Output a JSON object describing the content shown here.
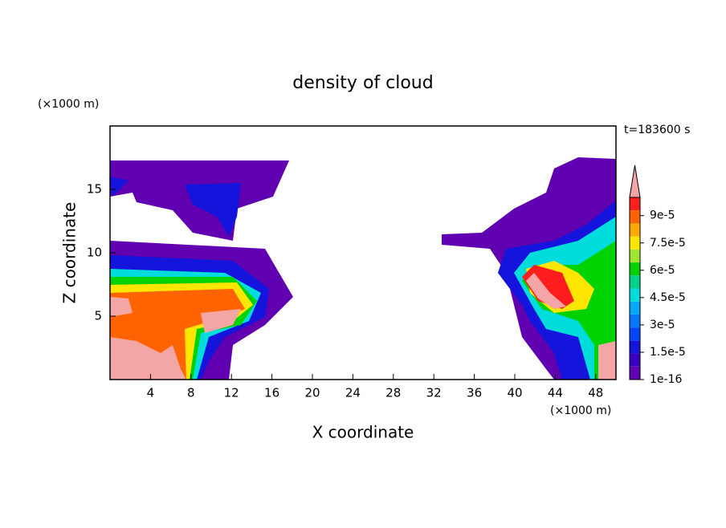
{
  "chart_data": {
    "type": "contour",
    "title": "density of cloud",
    "x_label": "X coordinate",
    "y_label": "Z coordinate",
    "x_unit": "(×1000 m)",
    "y_unit": "(×1000 m)",
    "time_label": "t=183600 s",
    "xlim": [
      0,
      50
    ],
    "xticks": [
      4,
      8,
      12,
      16,
      20,
      24,
      28,
      32,
      36,
      40,
      44,
      48
    ],
    "ylim": [
      0,
      20
    ],
    "yticks": [
      5,
      10,
      15
    ],
    "colorbar": {
      "lim": [
        1e-16,
        0.0001
      ],
      "ticks": [
        {
          "value": 1e-16,
          "label": "1e-16"
        },
        {
          "value": 1.5e-05,
          "label": "1.5e-5"
        },
        {
          "value": 3e-05,
          "label": "3e-5"
        },
        {
          "value": 4.5e-05,
          "label": "4.5e-5"
        },
        {
          "value": 6e-05,
          "label": "6e-5"
        },
        {
          "value": 7.5e-05,
          "label": "7.5e-5"
        },
        {
          "value": 9e-05,
          "label": "9e-5"
        }
      ],
      "colors": [
        "#6000b0",
        "#3a00c0",
        "#1414dc",
        "#0046ff",
        "#0078ff",
        "#00aaff",
        "#00dcdc",
        "#00d28c",
        "#00d200",
        "#a0e632",
        "#ffe600",
        "#ffaa00",
        "#ff6400",
        "#ff1e1e"
      ],
      "extend_color": "#f4a6a6"
    }
  }
}
